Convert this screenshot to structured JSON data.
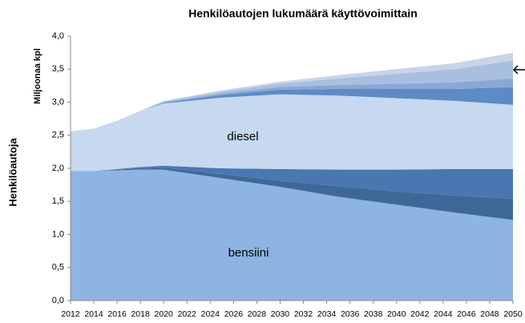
{
  "chart_data": {
    "type": "stacked-area",
    "title": "Henkilöautojen lukumäärä käyttövoimittain",
    "y_label": "Henkilöautoja",
    "unit_label": "Miljoonaa kpl",
    "x": [
      2012,
      2014,
      2016,
      2018,
      2020,
      2025,
      2030,
      2035,
      2040,
      2045,
      2050
    ],
    "xlim": [
      2012,
      2050
    ],
    "xticks": [
      2012,
      2014,
      2016,
      2018,
      2020,
      2022,
      2024,
      2026,
      2028,
      2030,
      2032,
      2034,
      2036,
      2038,
      2040,
      2042,
      2044,
      2046,
      2048,
      2050
    ],
    "ylim": [
      0,
      4
    ],
    "yticks": [
      {
        "value": 0,
        "label": "0,0"
      },
      {
        "value": 0.5,
        "label": "0,5"
      },
      {
        "value": 1,
        "label": "1,0"
      },
      {
        "value": 1.5,
        "label": "1,5"
      },
      {
        "value": 2,
        "label": "2,0"
      },
      {
        "value": 2.5,
        "label": "2,5"
      },
      {
        "value": 3,
        "label": "3,0"
      },
      {
        "value": 3.5,
        "label": "3,5"
      },
      {
        "value": 4,
        "label": "4,0"
      }
    ],
    "series": [
      {
        "name": "bensiini",
        "color": "#8eb4e3",
        "values": [
          1.96,
          1.96,
          1.97,
          1.98,
          1.98,
          1.85,
          1.72,
          1.57,
          1.45,
          1.33,
          1.22
        ]
      },
      {
        "color": "#3e6898",
        "values": [
          0,
          0,
          0.01,
          0.02,
          0.03,
          0.06,
          0.09,
          0.16,
          0.2,
          0.26,
          0.32
        ]
      },
      {
        "color": "#4a77b1",
        "values": [
          0,
          0,
          0.01,
          0.02,
          0.03,
          0.09,
          0.18,
          0.25,
          0.33,
          0.4,
          0.45
        ]
      },
      {
        "name": "diesel",
        "color": "#c6d9f0",
        "values": [
          0.6,
          0.64,
          0.73,
          0.85,
          0.94,
          1.07,
          1.13,
          1.12,
          1.08,
          1.03,
          0.97
        ]
      },
      {
        "color": "#5e8bc6",
        "values": [
          0,
          0,
          0,
          0,
          0.01,
          0.04,
          0.07,
          0.1,
          0.14,
          0.18,
          0.27
        ]
      },
      {
        "color": "#8aa8d5",
        "values": [
          0,
          0,
          0,
          0,
          0.01,
          0.02,
          0.04,
          0.06,
          0.08,
          0.1,
          0.13
        ]
      },
      {
        "color": "#a9bfe0",
        "values": [
          0,
          0,
          0,
          0,
          0.01,
          0.03,
          0.05,
          0.1,
          0.15,
          0.2,
          0.27
        ]
      },
      {
        "color": "#c7d4ea",
        "values": [
          0,
          0,
          0,
          0,
          0.01,
          0.02,
          0.03,
          0.05,
          0.07,
          0.09,
          0.12
        ]
      }
    ]
  }
}
